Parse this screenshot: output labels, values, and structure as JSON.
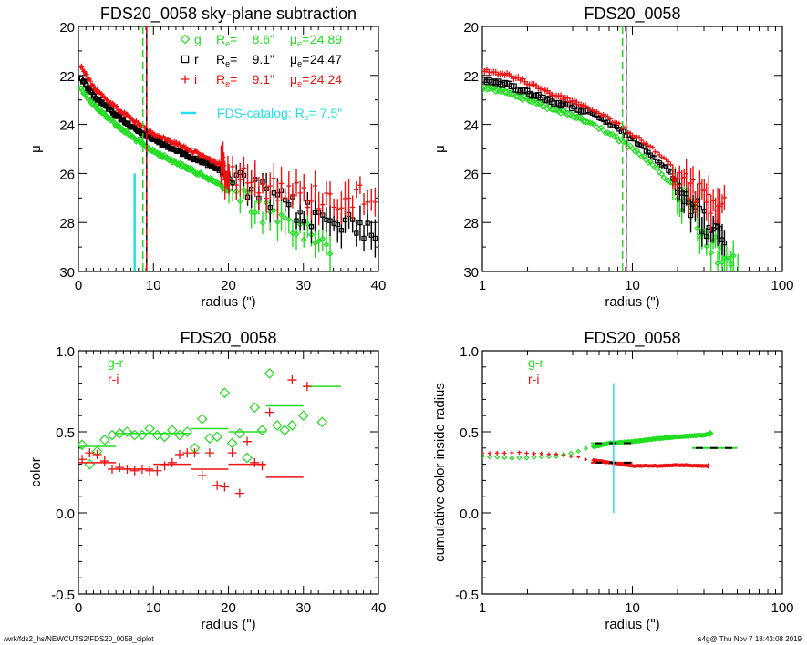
{
  "footer": {
    "path": "/wrk/fds2_hs/NEWCUTS2/FDS20_0058_ciplot",
    "stamp": "s4g@  Thu Nov  7 18:43:08 2019"
  },
  "colors": {
    "g": "#22dd22",
    "r": "#000000",
    "i": "#ee1111",
    "catalog": "#22e0e8",
    "frame": "#000000"
  },
  "chart_data": [
    {
      "id": "profile-linear",
      "type": "scatter",
      "title": "FDS20_0058 sky-plane subtraction",
      "xlabel": "radius (\")",
      "ylabel": "μ",
      "xscale": "linear",
      "xlim": [
        0,
        40
      ],
      "ylim": [
        30,
        20
      ],
      "xticks": [
        "0",
        "10",
        "20",
        "30",
        "40"
      ],
      "yticks": [
        "20",
        "22",
        "24",
        "26",
        "28",
        "30"
      ],
      "legend_position": "top-right",
      "legend": [
        {
          "band": "g",
          "marker": "diamond",
          "re_label": "R",
          "re_sub": "e",
          "re_value": "8.6\"",
          "mu_label": "μ",
          "mu_sub": "e",
          "mu_value": "24.89"
        },
        {
          "band": "r",
          "marker": "square",
          "re_label": "R",
          "re_sub": "e",
          "re_value": "9.1\"",
          "mu_label": "μ",
          "mu_sub": "e",
          "mu_value": "24.47"
        },
        {
          "band": "i",
          "marker": "plus",
          "re_label": "R",
          "re_sub": "e",
          "re_value": "9.1\"",
          "mu_label": "μ",
          "mu_sub": "e",
          "mu_value": "24.24"
        }
      ],
      "catalog_legend": {
        "text": "FDS-catalog: R",
        "sub": "e",
        "value": "=   7.5\""
      },
      "vlines": [
        {
          "band": "g",
          "x": 8.6,
          "style": "dashed"
        },
        {
          "band": "r",
          "x": 9.1,
          "style": "solid"
        },
        {
          "band": "i",
          "x": 9.1,
          "style": "dashed"
        }
      ],
      "catalog_line": {
        "x": 7.5,
        "y_from": 26.0,
        "y_to": 30.0
      },
      "series": [
        {
          "name": "g",
          "profile": [
            [
              0.3,
              22.5
            ],
            [
              2,
              23.2
            ],
            [
              5,
              24.0
            ],
            [
              8,
              24.7
            ],
            [
              10,
              25.1
            ],
            [
              14,
              25.7
            ],
            [
              18,
              26.3
            ],
            [
              22,
              27.1
            ],
            [
              26,
              27.8
            ],
            [
              30,
              28.4
            ],
            [
              33,
              28.8
            ]
          ],
          "noise_from": 20,
          "max_x": 34
        },
        {
          "name": "r",
          "profile": [
            [
              0.3,
              22.1
            ],
            [
              2,
              22.8
            ],
            [
              5,
              23.6
            ],
            [
              8,
              24.3
            ],
            [
              10,
              24.6
            ],
            [
              14,
              25.2
            ],
            [
              18,
              25.7
            ],
            [
              22,
              26.5
            ],
            [
              26,
              27.1
            ],
            [
              30,
              27.6
            ],
            [
              34,
              28.0
            ],
            [
              40,
              28.2
            ]
          ],
          "noise_from": 20,
          "max_x": 40
        },
        {
          "name": "i",
          "profile": [
            [
              0.3,
              21.6
            ],
            [
              2,
              22.5
            ],
            [
              5,
              23.3
            ],
            [
              8,
              24.0
            ],
            [
              10,
              24.4
            ],
            [
              14,
              24.9
            ],
            [
              18,
              25.5
            ],
            [
              22,
              26.1
            ],
            [
              26,
              26.6
            ],
            [
              30,
              26.9
            ],
            [
              34,
              27.0
            ],
            [
              40,
              26.9
            ]
          ],
          "noise_from": 19,
          "max_x": 40
        }
      ]
    },
    {
      "id": "profile-log",
      "type": "scatter",
      "title": "FDS20_0058",
      "xlabel": "radius (\")",
      "ylabel": "μ",
      "xscale": "log",
      "xlim": [
        1,
        100
      ],
      "ylim": [
        30,
        20
      ],
      "xticks": [
        "1",
        "10",
        "100"
      ],
      "yticks": [
        "20",
        "22",
        "24",
        "26",
        "28",
        "30"
      ],
      "vlines": [
        {
          "band": "g",
          "x": 8.6,
          "style": "dashed"
        },
        {
          "band": "r",
          "x": 9.1,
          "style": "solid"
        },
        {
          "band": "i",
          "x": 9.1,
          "style": "dashed"
        }
      ],
      "series": [
        {
          "name": "g",
          "profile": [
            [
              1,
              22.5
            ],
            [
              1.4,
              22.6
            ],
            [
              2,
              23.0
            ],
            [
              3,
              23.4
            ],
            [
              5,
              23.9
            ],
            [
              8,
              24.6
            ],
            [
              10,
              25.0
            ],
            [
              15,
              25.9
            ],
            [
              20,
              26.8
            ],
            [
              25,
              27.8
            ],
            [
              30,
              28.6
            ],
            [
              40,
              29.5
            ],
            [
              50,
              30.0
            ]
          ],
          "max_x": 52
        },
        {
          "name": "r",
          "profile": [
            [
              1,
              22.2
            ],
            [
              1.4,
              22.35
            ],
            [
              2,
              22.7
            ],
            [
              3,
              23.1
            ],
            [
              5,
              23.5
            ],
            [
              8,
              24.2
            ],
            [
              10,
              24.6
            ],
            [
              15,
              25.5
            ],
            [
              20,
              26.3
            ],
            [
              25,
              27.3
            ],
            [
              30,
              28.0
            ],
            [
              40,
              28.7
            ]
          ],
          "max_x": 42
        },
        {
          "name": "i",
          "profile": [
            [
              1,
              21.8
            ],
            [
              1.4,
              21.95
            ],
            [
              2,
              22.3
            ],
            [
              3,
              22.8
            ],
            [
              5,
              23.3
            ],
            [
              8,
              24.0
            ],
            [
              10,
              24.4
            ],
            [
              15,
              25.2
            ],
            [
              20,
              26.0
            ],
            [
              25,
              26.7
            ],
            [
              30,
              27.0
            ],
            [
              40,
              27.4
            ]
          ],
          "max_x": 42
        }
      ]
    },
    {
      "id": "color-profile",
      "type": "scatter",
      "title": "FDS20_0058",
      "xlabel": "radius (\")",
      "ylabel": "color",
      "xscale": "linear",
      "xlim": [
        0,
        40
      ],
      "ylim": [
        -0.5,
        1.0
      ],
      "xticks": [
        "0",
        "10",
        "20",
        "30",
        "40"
      ],
      "yticks": [
        "-0.5",
        "0.0",
        "0.5",
        "1.0"
      ],
      "legend_position": "top-left",
      "legend": [
        {
          "name": "g-r",
          "band": "g"
        },
        {
          "name": "r-i",
          "band": "i"
        }
      ],
      "series": [
        {
          "name": "g-r",
          "band": "g",
          "marker": "diamond",
          "points": [
            [
              0.5,
              0.42
            ],
            [
              1.5,
              0.3
            ],
            [
              2.5,
              0.38
            ],
            [
              3.5,
              0.45
            ],
            [
              4.5,
              0.48
            ],
            [
              5.5,
              0.49
            ],
            [
              6.5,
              0.5
            ],
            [
              7.5,
              0.48
            ],
            [
              8.5,
              0.48
            ],
            [
              9.5,
              0.52
            ],
            [
              10.5,
              0.48
            ],
            [
              11.5,
              0.47
            ],
            [
              12.5,
              0.51
            ],
            [
              13.5,
              0.48
            ],
            [
              14.5,
              0.5
            ],
            [
              15.5,
              0.4
            ],
            [
              16.5,
              0.58
            ],
            [
              17.5,
              0.46
            ],
            [
              18.5,
              0.47
            ],
            [
              19.5,
              0.74
            ],
            [
              20.5,
              0.43
            ],
            [
              21.5,
              0.49
            ],
            [
              22.5,
              0.34
            ],
            [
              23.5,
              0.65
            ],
            [
              24.5,
              0.51
            ],
            [
              25.5,
              0.86
            ],
            [
              26.5,
              0.54
            ],
            [
              27.5,
              0.51
            ],
            [
              28.5,
              0.54
            ],
            [
              30,
              0.6
            ],
            [
              32.5,
              0.56
            ]
          ],
          "bins": [
            [
              0,
              5,
              0.41
            ],
            [
              5,
              15,
              0.49
            ],
            [
              15,
              20,
              0.52
            ],
            [
              20,
              25,
              0.5
            ],
            [
              25,
              30,
              0.66
            ],
            [
              30,
              35,
              0.78
            ]
          ]
        },
        {
          "name": "r-i",
          "band": "i",
          "marker": "plus",
          "points": [
            [
              0.5,
              0.33
            ],
            [
              1.5,
              0.37
            ],
            [
              2.5,
              0.36
            ],
            [
              3.5,
              0.32
            ],
            [
              4.5,
              0.27
            ],
            [
              5.5,
              0.28
            ],
            [
              6.5,
              0.27
            ],
            [
              7.5,
              0.26
            ],
            [
              8.5,
              0.27
            ],
            [
              9.5,
              0.26
            ],
            [
              10.5,
              0.26
            ],
            [
              11.5,
              0.29
            ],
            [
              12.5,
              0.31
            ],
            [
              13.5,
              0.36
            ],
            [
              14.5,
              0.37
            ],
            [
              15.5,
              0.37
            ],
            [
              16.5,
              0.23
            ],
            [
              17.5,
              0.37
            ],
            [
              18.5,
              0.17
            ],
            [
              19.5,
              0.16
            ],
            [
              20.5,
              0.37
            ],
            [
              21.5,
              0.12
            ],
            [
              22.5,
              0.44
            ],
            [
              23.5,
              0.31
            ],
            [
              24.5,
              0.29
            ],
            [
              25.5,
              0.62
            ],
            [
              28.5,
              0.82
            ],
            [
              30.5,
              0.78
            ]
          ],
          "bins": [
            [
              0,
              5,
              0.31
            ],
            [
              5,
              10,
              0.27
            ],
            [
              10,
              15,
              0.3
            ],
            [
              15,
              20,
              0.27
            ],
            [
              20,
              25,
              0.3
            ],
            [
              25,
              30,
              0.22
            ]
          ]
        }
      ]
    },
    {
      "id": "cumulative-color",
      "type": "scatter",
      "title": "FDS20_0058",
      "xlabel": "radius (\")",
      "ylabel": "cumulative color inside radius",
      "xscale": "log",
      "xlim": [
        1,
        100
      ],
      "ylim": [
        -0.5,
        1.0
      ],
      "xticks": [
        "1",
        "10",
        "100"
      ],
      "yticks": [
        "-0.5",
        "0.0",
        "0.5",
        "1.0"
      ],
      "legend_position": "top-left",
      "legend": [
        {
          "name": "g-r",
          "band": "g"
        },
        {
          "name": "r-i",
          "band": "i"
        }
      ],
      "catalog_line": {
        "x": 7.5,
        "y_from": 0.0,
        "y_to": 0.8
      },
      "series": [
        {
          "name": "g-r",
          "band": "g",
          "marker": "diamond",
          "profile": [
            [
              1,
              0.35
            ],
            [
              1.4,
              0.34
            ],
            [
              2,
              0.34
            ],
            [
              3,
              0.35
            ],
            [
              4,
              0.37
            ],
            [
              5,
              0.4
            ],
            [
              7,
              0.43
            ],
            [
              10,
              0.44
            ],
            [
              15,
              0.46
            ],
            [
              20,
              0.47
            ],
            [
              30,
              0.48
            ],
            [
              33,
              0.49
            ]
          ],
          "dashes": [
            [
              5.3,
              10,
              0.43
            ],
            [
              25,
              50,
              0.4
            ]
          ]
        },
        {
          "name": "r-i",
          "band": "i",
          "marker": "plus",
          "profile": [
            [
              1,
              0.37
            ],
            [
              1.4,
              0.37
            ],
            [
              2,
              0.37
            ],
            [
              3,
              0.36
            ],
            [
              4,
              0.35
            ],
            [
              5,
              0.33
            ],
            [
              7,
              0.31
            ],
            [
              10,
              0.29
            ],
            [
              15,
              0.29
            ],
            [
              20,
              0.295
            ],
            [
              30,
              0.29
            ],
            [
              32,
              0.29
            ]
          ],
          "dashes": [
            [
              5.3,
              10,
              0.31
            ]
          ]
        }
      ]
    }
  ]
}
